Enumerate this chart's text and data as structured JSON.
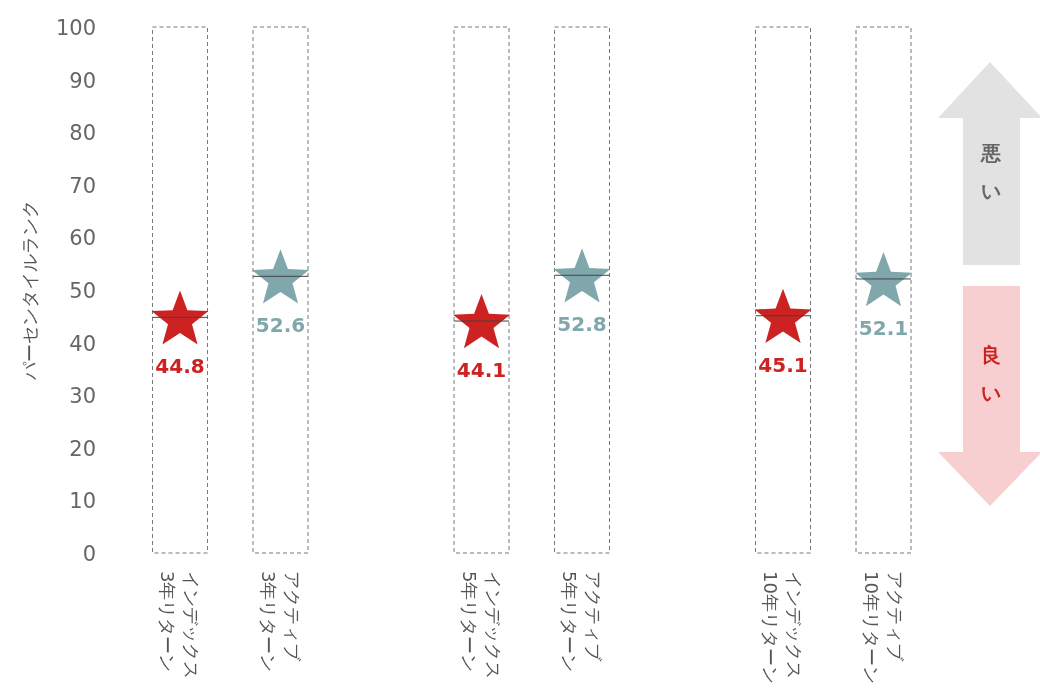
{
  "chart_data": {
    "type": "scatter",
    "ylabel": "パーセンタイルランク",
    "categories": [
      "インデックス\n3年リターン",
      "アクティブ\n3年リターン",
      "インデックス\n5年リターン",
      "アクティブ\n5年リターン",
      "インデックス\n10年リターン",
      "アクティブ\n10年リターン"
    ],
    "ylim": [
      0,
      100
    ],
    "yticks": [
      0,
      10,
      20,
      30,
      40,
      50,
      60,
      70,
      80,
      90,
      100
    ],
    "grid": false,
    "marker": "star",
    "series": [
      {
        "type": "bar",
        "color": "#ffffff",
        "line_style": "dashed",
        "values": [
          100,
          100,
          100,
          100,
          100,
          100
        ]
      },
      {
        "colors": [
          "#cc2222",
          "#80a8ac",
          "#cc2222",
          "#80a8ac",
          "#cc2222",
          "#80a8ac"
        ],
        "values": [
          44.8,
          52.6,
          44.1,
          52.8,
          45.1,
          52.1
        ],
        "value_labels": [
          "44.8",
          "52.6",
          "44.1",
          "52.8",
          "45.1",
          "52.1"
        ]
      }
    ],
    "annotations": [
      "悪い",
      "良い"
    ]
  }
}
